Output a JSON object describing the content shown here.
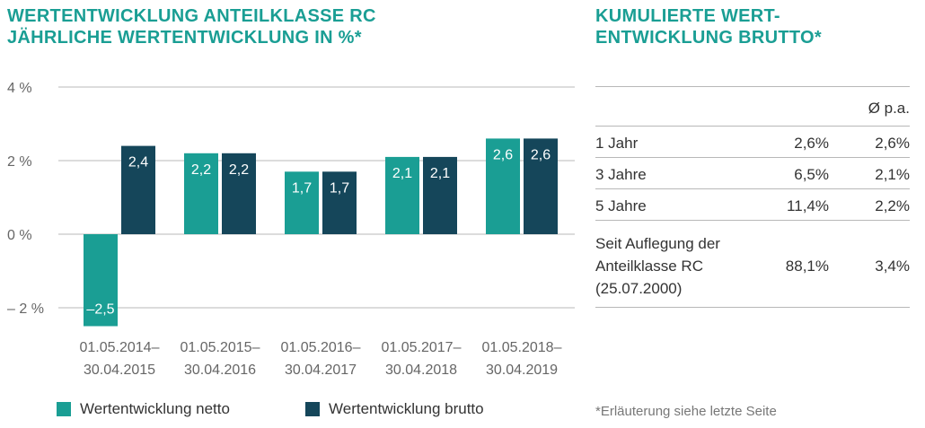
{
  "left_title": {
    "line1": "WERTENTWICKLUNG ANTEILKLASSE RC",
    "line2": "JÄHRLICHE WERTENTWICKLUNG IN %*"
  },
  "right_title": {
    "line1": "KUMULIERTE WERT-",
    "line2": "ENTWICKLUNG BRUTTO*"
  },
  "colors": {
    "netto": "#1a9e94",
    "brutto": "#15465a",
    "title": "#1a9e94",
    "grid": "#b8b8b8"
  },
  "chart_data": {
    "type": "bar",
    "categories": [
      [
        "01.05.2014–",
        "30.04.2015"
      ],
      [
        "01.05.2015–",
        "30.04.2016"
      ],
      [
        "01.05.2016–",
        "30.04.2017"
      ],
      [
        "01.05.2017–",
        "30.04.2018"
      ],
      [
        "01.05.2018–",
        "30.04.2019"
      ]
    ],
    "series": [
      {
        "name": "Wertentwicklung netto",
        "values": [
          -2.5,
          2.2,
          1.7,
          2.1,
          2.6
        ],
        "labels": [
          "–2,5",
          "2,2",
          "1,7",
          "2,1",
          "2,6"
        ]
      },
      {
        "name": "Wertentwicklung brutto",
        "values": [
          2.4,
          2.2,
          1.7,
          2.1,
          2.6
        ],
        "labels": [
          "2,4",
          "2,2",
          "1,7",
          "2,1",
          "2,6"
        ]
      }
    ],
    "ylim": [
      -2.5,
      4
    ],
    "yticks": [
      4,
      2,
      0,
      -2
    ],
    "ytick_labels": [
      "4 %",
      "2 %",
      "0 %",
      "– 2 %"
    ],
    "grid": true,
    "legend_position": "bottom"
  },
  "table": {
    "col_header": "Ø p.a.",
    "rows": [
      {
        "label": "1 Jahr",
        "cumulative": "2,6%",
        "pa": "2,6%"
      },
      {
        "label": "3 Jahre",
        "cumulative": "6,5%",
        "pa": "2,1%"
      },
      {
        "label": "5 Jahre",
        "cumulative": "11,4%",
        "pa": "2,2%"
      },
      {
        "label_lines": [
          "Seit Auflegung der",
          "Anteilklasse RC",
          "(25.07.2000)"
        ],
        "cumulative": "88,1%",
        "pa": "3,4%"
      }
    ]
  },
  "footnote": "*Erläuterung siehe letzte Seite"
}
